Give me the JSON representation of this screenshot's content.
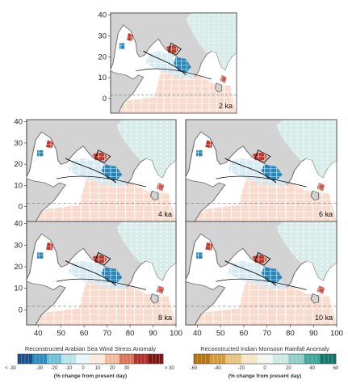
{
  "panels": [
    {
      "label": "2 ka"
    },
    {
      "label": "4 ka"
    },
    {
      "label": "6 ka"
    },
    {
      "label": "8 ka"
    },
    {
      "label": "10 ka"
    }
  ],
  "axes": {
    "lat_ticks": [
      "0",
      "10",
      "20",
      "30",
      "40"
    ],
    "lon_ticks": [
      "40",
      "50",
      "60",
      "70",
      "80",
      "90",
      "100"
    ],
    "lat_range": [
      -7,
      41
    ],
    "lon_range": [
      35,
      100
    ]
  },
  "colorbars": {
    "wind": {
      "title": "Reconstructed Arabian Sea Wind Stress Anomaly",
      "unit": "(% change from present day)",
      "ticks": [
        "< -30",
        "-30",
        "-20",
        "-10",
        "0",
        "10",
        "20",
        "30",
        "> 30"
      ],
      "colors": [
        "#1b4f8a",
        "#2a8bbf",
        "#6cc0d6",
        "#b9e3ec",
        "#e6f5f8",
        "#fbe7dd",
        "#f2b99b",
        "#d9735a",
        "#b32f2b",
        "#7c1414"
      ]
    },
    "rain": {
      "title": "Reconstructed Indian Monsoon Rainfall Anomaly",
      "unit": "(% change from present day)",
      "ticks": [
        "-60",
        "-40",
        "-20",
        "0",
        "20",
        "40",
        "60"
      ],
      "colors": [
        "#b5740f",
        "#d29a3a",
        "#e7c47e",
        "#f5e6c4",
        "#f4f4f0",
        "#cde9e5",
        "#8fcfc7",
        "#3fa79d",
        "#16766d"
      ]
    }
  },
  "colors": {
    "land": "#d3d3d3",
    "ocean": "#ffffff",
    "coast": "#6e6e6e"
  }
}
